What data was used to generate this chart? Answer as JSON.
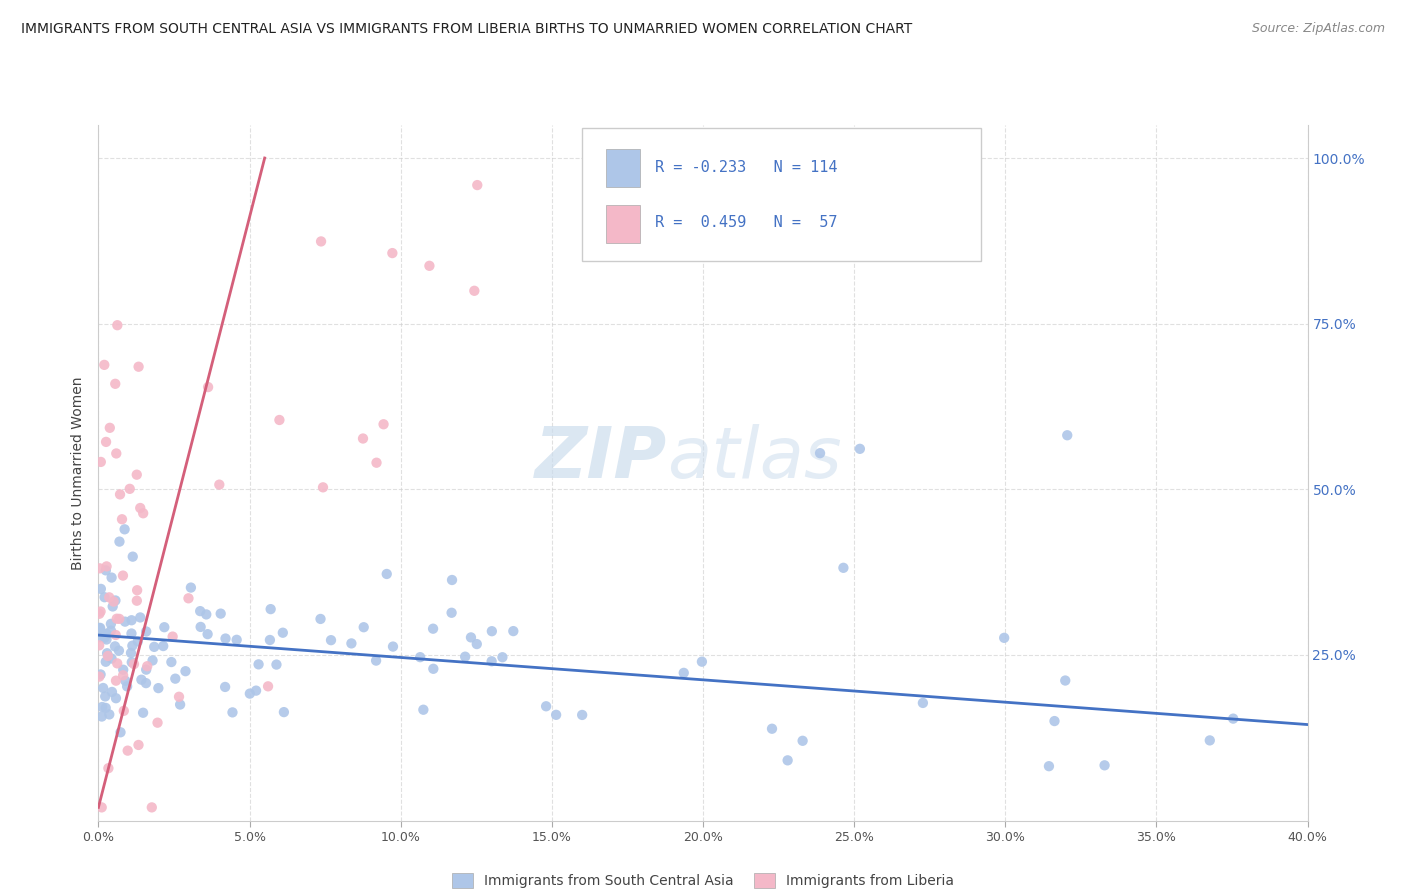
{
  "title": "IMMIGRANTS FROM SOUTH CENTRAL ASIA VS IMMIGRANTS FROM LIBERIA BIRTHS TO UNMARRIED WOMEN CORRELATION CHART",
  "source": "Source: ZipAtlas.com",
  "ylabel": "Births to Unmarried Women",
  "legend_blue_label": "Immigrants from South Central Asia",
  "legend_pink_label": "Immigrants from Liberia",
  "blue_color": "#aec6e8",
  "pink_color": "#f4b8c8",
  "blue_line_color": "#4472c4",
  "pink_line_color": "#d45f7a",
  "watermark_zip": "ZIP",
  "watermark_atlas": "atlas",
  "background_color": "#ffffff",
  "blue_line": {
    "x0": 0.0,
    "x1": 0.4,
    "y0": 0.28,
    "y1": 0.145
  },
  "pink_line": {
    "x0": 0.0,
    "x1": 0.055,
    "y0": 0.02,
    "y1": 1.0
  },
  "xlim": [
    0.0,
    0.4
  ],
  "ylim": [
    0.0,
    1.05
  ],
  "yticks": [
    0.25,
    0.5,
    0.75,
    1.0
  ],
  "ytick_labels": [
    "25.0%",
    "50.0%",
    "75.0%",
    "100.0%"
  ],
  "xticks": [
    0.0,
    0.05,
    0.1,
    0.15,
    0.2,
    0.25,
    0.3,
    0.35,
    0.4
  ],
  "xtick_labels": [
    "0.0%",
    "5.0%",
    "10.0%",
    "15.0%",
    "20.0%",
    "25.0%",
    "30.0%",
    "35.0%",
    "40.0%"
  ]
}
